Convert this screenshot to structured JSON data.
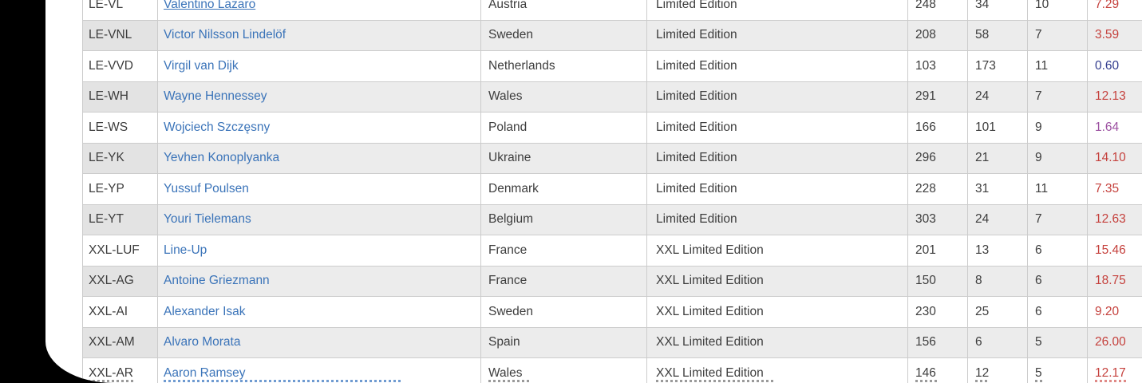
{
  "colors": {
    "page_background": "#000000",
    "content_background": "#ffffff",
    "grid_line": "#cccccc",
    "row_alt_background": "#ececec",
    "text": "#3d3d3d",
    "link_blue": "#3b74b9",
    "price_red": "#c5413d",
    "price_blue": "#323c8e",
    "price_purple": "#9c51a1"
  },
  "table": {
    "rows": [
      {
        "code": "LE-VL",
        "name": "Valentino Lazaro",
        "country": "Austria",
        "edition": "Limited Edition",
        "qty_a": "248",
        "qty_b": "34",
        "qty_c": "10",
        "price": "7.29",
        "price_color": "red",
        "underlined": true
      },
      {
        "code": "LE-VNL",
        "name": "Victor Nilsson Lindelöf",
        "country": "Sweden",
        "edition": "Limited Edition",
        "qty_a": "208",
        "qty_b": "58",
        "qty_c": "7",
        "price": "3.59",
        "price_color": "red",
        "underlined": false
      },
      {
        "code": "LE-VVD",
        "name": "Virgil van Dijk",
        "country": "Netherlands",
        "edition": "Limited Edition",
        "qty_a": "103",
        "qty_b": "173",
        "qty_c": "11",
        "price": "0.60",
        "price_color": "blue",
        "underlined": false
      },
      {
        "code": "LE-WH",
        "name": "Wayne Hennessey",
        "country": "Wales",
        "edition": "Limited Edition",
        "qty_a": "291",
        "qty_b": "24",
        "qty_c": "7",
        "price": "12.13",
        "price_color": "red",
        "underlined": false
      },
      {
        "code": "LE-WS",
        "name": "Wojciech Szczęsny",
        "country": "Poland",
        "edition": "Limited Edition",
        "qty_a": "166",
        "qty_b": "101",
        "qty_c": "9",
        "price": "1.64",
        "price_color": "purple",
        "underlined": false
      },
      {
        "code": "LE-YK",
        "name": "Yevhen Konoplyanka",
        "country": "Ukraine",
        "edition": "Limited Edition",
        "qty_a": "296",
        "qty_b": "21",
        "qty_c": "9",
        "price": "14.10",
        "price_color": "red",
        "underlined": false
      },
      {
        "code": "LE-YP",
        "name": "Yussuf Poulsen",
        "country": "Denmark",
        "edition": "Limited Edition",
        "qty_a": "228",
        "qty_b": "31",
        "qty_c": "11",
        "price": "7.35",
        "price_color": "red",
        "underlined": false
      },
      {
        "code": "LE-YT",
        "name": "Youri Tielemans",
        "country": "Belgium",
        "edition": "Limited Edition",
        "qty_a": "303",
        "qty_b": "24",
        "qty_c": "7",
        "price": "12.63",
        "price_color": "red",
        "underlined": false
      },
      {
        "code": "XXL-LUF",
        "name": "Line-Up",
        "country": "France",
        "edition": "XXL Limited Edition",
        "qty_a": "201",
        "qty_b": "13",
        "qty_c": "6",
        "price": "15.46",
        "price_color": "red",
        "underlined": false
      },
      {
        "code": "XXL-AG",
        "name": "Antoine Griezmann",
        "country": "France",
        "edition": "XXL Limited Edition",
        "qty_a": "150",
        "qty_b": "8",
        "qty_c": "6",
        "price": "18.75",
        "price_color": "red",
        "underlined": false
      },
      {
        "code": "XXL-AI",
        "name": "Alexander Isak",
        "country": "Sweden",
        "edition": "XXL Limited Edition",
        "qty_a": "230",
        "qty_b": "25",
        "qty_c": "6",
        "price": "9.20",
        "price_color": "red",
        "underlined": false
      },
      {
        "code": "XXL-AM",
        "name": "Alvaro Morata",
        "country": "Spain",
        "edition": "XXL Limited Edition",
        "qty_a": "156",
        "qty_b": "6",
        "qty_c": "5",
        "price": "26.00",
        "price_color": "red",
        "underlined": false
      },
      {
        "code": "XXL-AR",
        "name": "Aaron Ramsey",
        "country": "Wales",
        "edition": "XXL Limited Edition",
        "qty_a": "146",
        "qty_b": "12",
        "qty_c": "5",
        "price": "12.17",
        "price_color": "red",
        "underlined": false
      }
    ]
  }
}
